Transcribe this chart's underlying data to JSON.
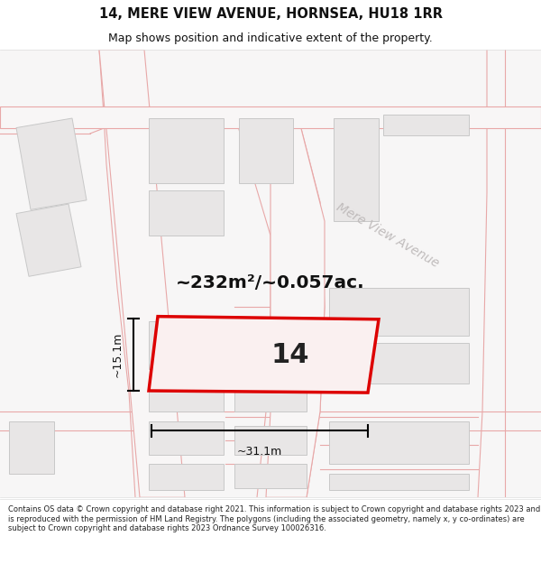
{
  "title": "14, MERE VIEW AVENUE, HORNSEA, HU18 1RR",
  "subtitle": "Map shows position and indicative extent of the property.",
  "area_text": "~232m²/~0.057ac.",
  "label_14": "14",
  "width_label": "~31.1m",
  "height_label": "~15.1m",
  "street_label": "Mere View Avenue",
  "footer": "Contains OS data © Crown copyright and database right 2021. This information is subject to Crown copyright and database rights 2023 and is reproduced with the permission of HM Land Registry. The polygons (including the associated geometry, namely x, y co-ordinates) are subject to Crown copyright and database rights 2023 Ordnance Survey 100026316.",
  "map_bg": "#f7f6f6",
  "road_color": "#f5d0d0",
  "road_line": "#e8a8a8",
  "building_fill": "#e8e6e6",
  "building_outline": "#c8c8c8",
  "highlight_fill": "#faf0f0",
  "highlight_outline": "#dd0000",
  "dim_color": "#111111",
  "street_text_color": "#c0bcbc",
  "title_color": "#111111",
  "footer_color": "#222222"
}
